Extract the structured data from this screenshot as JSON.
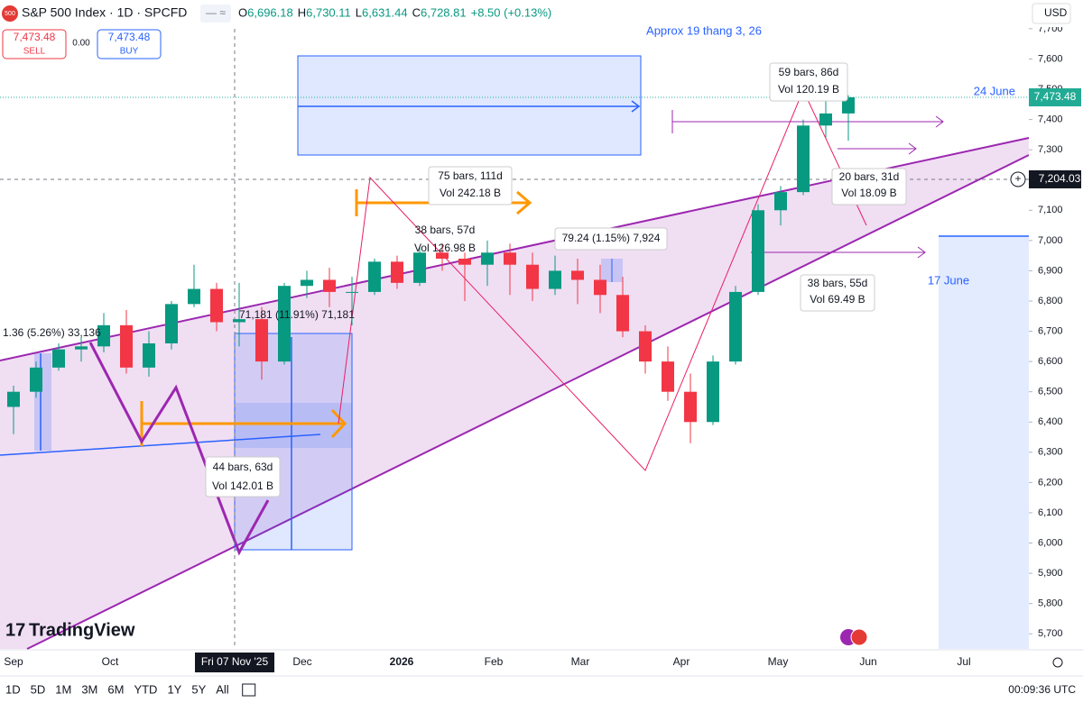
{
  "header": {
    "symbol": "S&P 500 Index · 1D · SPCFD",
    "ohlc": [
      "O",
      "6,696.18",
      "H",
      "6,730.11",
      "L",
      "6,631.44",
      "C",
      "6,728.81",
      "+8.50 (+0.13%)"
    ],
    "sell_price": "7,473.48",
    "sell": "SELL",
    "spread": "0.00",
    "buy_price": "7,473.48",
    "buy": "BUY",
    "currency": "USD",
    "badge": "500"
  },
  "annotations": {
    "approx": "Approx 19 thang 3, 26",
    "box1": [
      "59 bars, 86d",
      "Vol 120.19 B"
    ],
    "june24": "24 June",
    "box2": [
      "20 bars, 31d",
      "Vol 18.09 B"
    ],
    "box3": [
      "38 bars, 55d",
      "Vol 69.49 B"
    ],
    "june17": "17 June",
    "box4": [
      "75 bars, 111d",
      "Vol 242.18 B"
    ],
    "box5": [
      "38 bars, 57d",
      "Vol 126.98 B"
    ],
    "measure1": "79.24 (1.15%) 7,924",
    "measure2": "71,181 (11.91%) 71,181",
    "measure3": "1.36 (5.26%) 33,136",
    "box6": [
      "44 bars, 63d",
      "Vol 142.01 B"
    ]
  },
  "price_tags": {
    "last": "7,473.48",
    "level": "7,204.03"
  },
  "time_axis": [
    "Sep",
    "Oct",
    "Fri 07 Nov '25",
    "Dec",
    "2026",
    "Feb",
    "Mar",
    "Apr",
    "May",
    "Jun",
    "Jul"
  ],
  "logo": "TradingView",
  "toolbar": {
    "periods": [
      "1D",
      "5D",
      "1M",
      "3M",
      "6M",
      "YTD",
      "1Y",
      "5Y",
      "All"
    ],
    "clock": "00:09:36 UTC"
  },
  "chart_data": {
    "type": "candlestick",
    "up_color": "#089981",
    "down_color": "#f23645",
    "ylim": [
      5650,
      7795
    ],
    "yticks": [
      {
        "value": 5700,
        "label": "5,700"
      },
      {
        "value": 5800,
        "label": "5,800"
      },
      {
        "value": 5900,
        "label": "5,900"
      },
      {
        "value": 6000,
        "label": "6,000"
      },
      {
        "value": 6100,
        "label": "6,100"
      },
      {
        "value": 6200,
        "label": "6,200"
      },
      {
        "value": 6300,
        "label": "6,300"
      },
      {
        "value": 6400,
        "label": "6,400"
      },
      {
        "value": 6500,
        "label": "6,500"
      },
      {
        "value": 6600,
        "label": "6,600"
      },
      {
        "value": 6700,
        "label": "6,700"
      },
      {
        "value": 6800,
        "label": "6,800"
      },
      {
        "value": 6900,
        "label": "6,900"
      },
      {
        "value": 7000,
        "label": "7,000"
      },
      {
        "value": 7100,
        "label": "7,100"
      },
      {
        "value": 7200,
        "label": "7,200"
      },
      {
        "value": 7300,
        "label": "7,300"
      },
      {
        "value": 7400,
        "label": "7,400"
      },
      {
        "value": 7500,
        "label": "7,500"
      },
      {
        "value": 7600,
        "label": "7,600"
      },
      {
        "value": 7700,
        "label": "7,700"
      }
    ],
    "candles": [
      {
        "open": 6450,
        "high": 6520,
        "low": 6360,
        "close": 6500
      },
      {
        "open": 6500,
        "high": 6600,
        "low": 6480,
        "close": 6580
      },
      {
        "open": 6580,
        "high": 6660,
        "low": 6570,
        "close": 6640
      },
      {
        "open": 6640,
        "high": 6680,
        "low": 6600,
        "close": 6650
      },
      {
        "open": 6650,
        "high": 6760,
        "low": 6630,
        "close": 6720
      },
      {
        "open": 6720,
        "high": 6770,
        "low": 6560,
        "close": 6580
      },
      {
        "open": 6580,
        "high": 6700,
        "low": 6550,
        "close": 6660
      },
      {
        "open": 6660,
        "high": 6800,
        "low": 6640,
        "close": 6790
      },
      {
        "open": 6790,
        "high": 6920,
        "low": 6780,
        "close": 6840
      },
      {
        "open": 6840,
        "high": 6860,
        "low": 6700,
        "close": 6730
      },
      {
        "open": 6730,
        "high": 6860,
        "low": 6650,
        "close": 6740
      },
      {
        "open": 6740,
        "high": 6780,
        "low": 6540,
        "close": 6600
      },
      {
        "open": 6600,
        "high": 6860,
        "low": 6590,
        "close": 6850
      },
      {
        "open": 6850,
        "high": 6900,
        "low": 6810,
        "close": 6870
      },
      {
        "open": 6870,
        "high": 6910,
        "low": 6780,
        "close": 6830
      },
      {
        "open": 6830,
        "high": 6880,
        "low": 6720,
        "close": 6830
      },
      {
        "open": 6830,
        "high": 6940,
        "low": 6820,
        "close": 6930
      },
      {
        "open": 6930,
        "high": 6950,
        "low": 6840,
        "close": 6860
      },
      {
        "open": 6860,
        "high": 6980,
        "low": 6850,
        "close": 6960
      },
      {
        "open": 6960,
        "high": 6990,
        "low": 6900,
        "close": 6940
      },
      {
        "open": 6940,
        "high": 6960,
        "low": 6800,
        "close": 6920
      },
      {
        "open": 6920,
        "high": 7000,
        "low": 6850,
        "close": 6960
      },
      {
        "open": 6960,
        "high": 6990,
        "low": 6820,
        "close": 6920
      },
      {
        "open": 6920,
        "high": 6960,
        "low": 6800,
        "close": 6840
      },
      {
        "open": 6840,
        "high": 6950,
        "low": 6820,
        "close": 6900
      },
      {
        "open": 6900,
        "high": 6940,
        "low": 6790,
        "close": 6870
      },
      {
        "open": 6870,
        "high": 6920,
        "low": 6760,
        "close": 6820
      },
      {
        "open": 6820,
        "high": 6880,
        "low": 6680,
        "close": 6700
      },
      {
        "open": 6700,
        "high": 6720,
        "low": 6560,
        "close": 6600
      },
      {
        "open": 6600,
        "high": 6650,
        "low": 6470,
        "close": 6500
      },
      {
        "open": 6500,
        "high": 6560,
        "low": 6330,
        "close": 6400
      },
      {
        "open": 6400,
        "high": 6620,
        "low": 6390,
        "close": 6600
      },
      {
        "open": 6600,
        "high": 6850,
        "low": 6590,
        "close": 6830
      },
      {
        "open": 6830,
        "high": 7120,
        "low": 6820,
        "close": 7100
      },
      {
        "open": 7100,
        "high": 7180,
        "low": 7050,
        "close": 7160
      },
      {
        "open": 7160,
        "high": 7400,
        "low": 7150,
        "close": 7380
      },
      {
        "open": 7380,
        "high": 7500,
        "low": 7340,
        "close": 7420
      },
      {
        "open": 7420,
        "high": 7480,
        "low": 7330,
        "close": 7473.48
      }
    ]
  }
}
